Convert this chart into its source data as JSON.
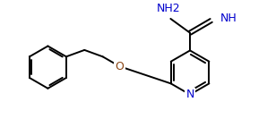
{
  "bg_color": "#ffffff",
  "line_color": "#000000",
  "nitrogen_color": "#0000cd",
  "oxygen_color": "#8b4513",
  "text_NH2": "NH2",
  "text_NH": "NH",
  "text_O": "O",
  "text_N": "N",
  "figsize": [
    2.98,
    1.52
  ],
  "dpi": 100,
  "lw": 1.4
}
